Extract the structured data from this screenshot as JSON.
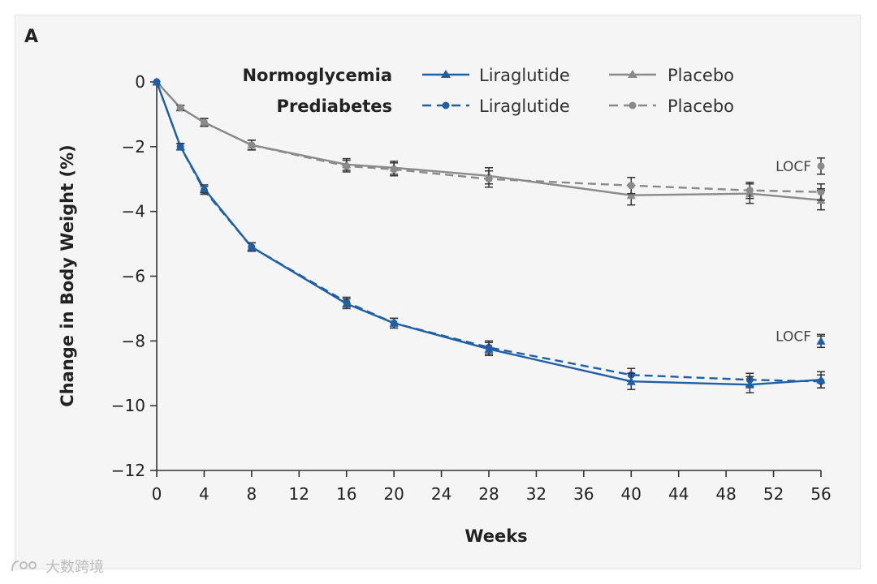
{
  "panel_label": "A",
  "watermark": {
    "text": "大数跨境"
  },
  "legend": {
    "groups": [
      {
        "label": "Normoglycemia",
        "entries": [
          {
            "series": "norm-lira",
            "label": "Liraglutide"
          },
          {
            "series": "norm-plac",
            "label": "Placebo"
          }
        ]
      },
      {
        "label": "Prediabetes",
        "entries": [
          {
            "series": "pre-lira",
            "label": "Liraglutide"
          },
          {
            "series": "pre-plac",
            "label": "Placebo"
          }
        ]
      }
    ]
  },
  "chart_data": {
    "type": "line",
    "title": "",
    "xlabel": "Weeks",
    "ylabel": "Change in Body Weight (%)",
    "xlim": [
      0,
      56
    ],
    "ylim": [
      -12,
      0
    ],
    "xticks": [
      0,
      4,
      8,
      12,
      16,
      20,
      24,
      28,
      32,
      36,
      40,
      44,
      48,
      52,
      56
    ],
    "yticks": [
      0,
      -2,
      -4,
      -6,
      -8,
      -10,
      -12
    ],
    "ytick_labels": [
      "0",
      "−2",
      "−4",
      "−6",
      "−8",
      "−10",
      "−12"
    ],
    "grid": false,
    "legend_position": "top",
    "x": [
      0,
      2,
      4,
      8,
      16,
      20,
      28,
      40,
      50,
      56
    ],
    "series": [
      {
        "id": "norm-lira",
        "group": "Normoglycemia",
        "name": "Liraglutide",
        "color": "#1f5fa6",
        "dash": "solid",
        "marker": "triangle",
        "values": [
          0,
          -2.0,
          -3.3,
          -5.1,
          -6.85,
          -7.45,
          -8.25,
          -9.25,
          -9.35,
          -9.2
        ],
        "err": [
          0,
          0.1,
          0.12,
          0.13,
          0.15,
          0.15,
          0.2,
          0.25,
          0.25,
          0.25
        ]
      },
      {
        "id": "pre-lira",
        "group": "Prediabetes",
        "name": "Liraglutide",
        "color": "#1f5fa6",
        "dash": "dashed",
        "marker": "circle",
        "values": [
          0,
          -2.0,
          -3.35,
          -5.1,
          -6.8,
          -7.45,
          -8.2,
          -9.05,
          -9.2,
          -9.25
        ],
        "err": [
          0,
          0.1,
          0.12,
          0.13,
          0.15,
          0.15,
          0.2,
          0.2,
          0.2,
          0.2
        ]
      },
      {
        "id": "norm-plac",
        "group": "Normoglycemia",
        "name": "Placebo",
        "color": "#8a8a8a",
        "dash": "solid",
        "marker": "triangle",
        "values": [
          0,
          -0.8,
          -1.25,
          -1.95,
          -2.55,
          -2.65,
          -2.9,
          -3.5,
          -3.45,
          -3.65
        ],
        "err": [
          0,
          0.08,
          0.12,
          0.15,
          0.18,
          0.2,
          0.25,
          0.3,
          0.3,
          0.3
        ]
      },
      {
        "id": "pre-plac",
        "group": "Prediabetes",
        "name": "Placebo",
        "color": "#8a8a8a",
        "dash": "dashed",
        "marker": "circle",
        "values": [
          0,
          -0.8,
          -1.25,
          -1.95,
          -2.6,
          -2.7,
          -3.0,
          -3.2,
          -3.35,
          -3.4
        ],
        "err": [
          0,
          0.08,
          0.12,
          0.15,
          0.18,
          0.2,
          0.25,
          0.25,
          0.25,
          0.25
        ]
      }
    ],
    "annotations": [
      {
        "text": "LOCF",
        "x": 56,
        "points": [
          {
            "y": -2.6,
            "err": 0.25,
            "color": "#8a8a8a",
            "marker": "circle"
          },
          {
            "y": -3.3,
            "err": 0.0,
            "color": "#8a8a8a",
            "marker": "none"
          }
        ]
      },
      {
        "text": "LOCF",
        "x": 56,
        "points": [
          {
            "y": -8.0,
            "err": 0.2,
            "color": "#1f5fa6",
            "marker": "triangle"
          },
          {
            "y": -7.85,
            "err": 0.0,
            "color": "#8a8a8a",
            "marker": "none"
          }
        ]
      }
    ]
  }
}
